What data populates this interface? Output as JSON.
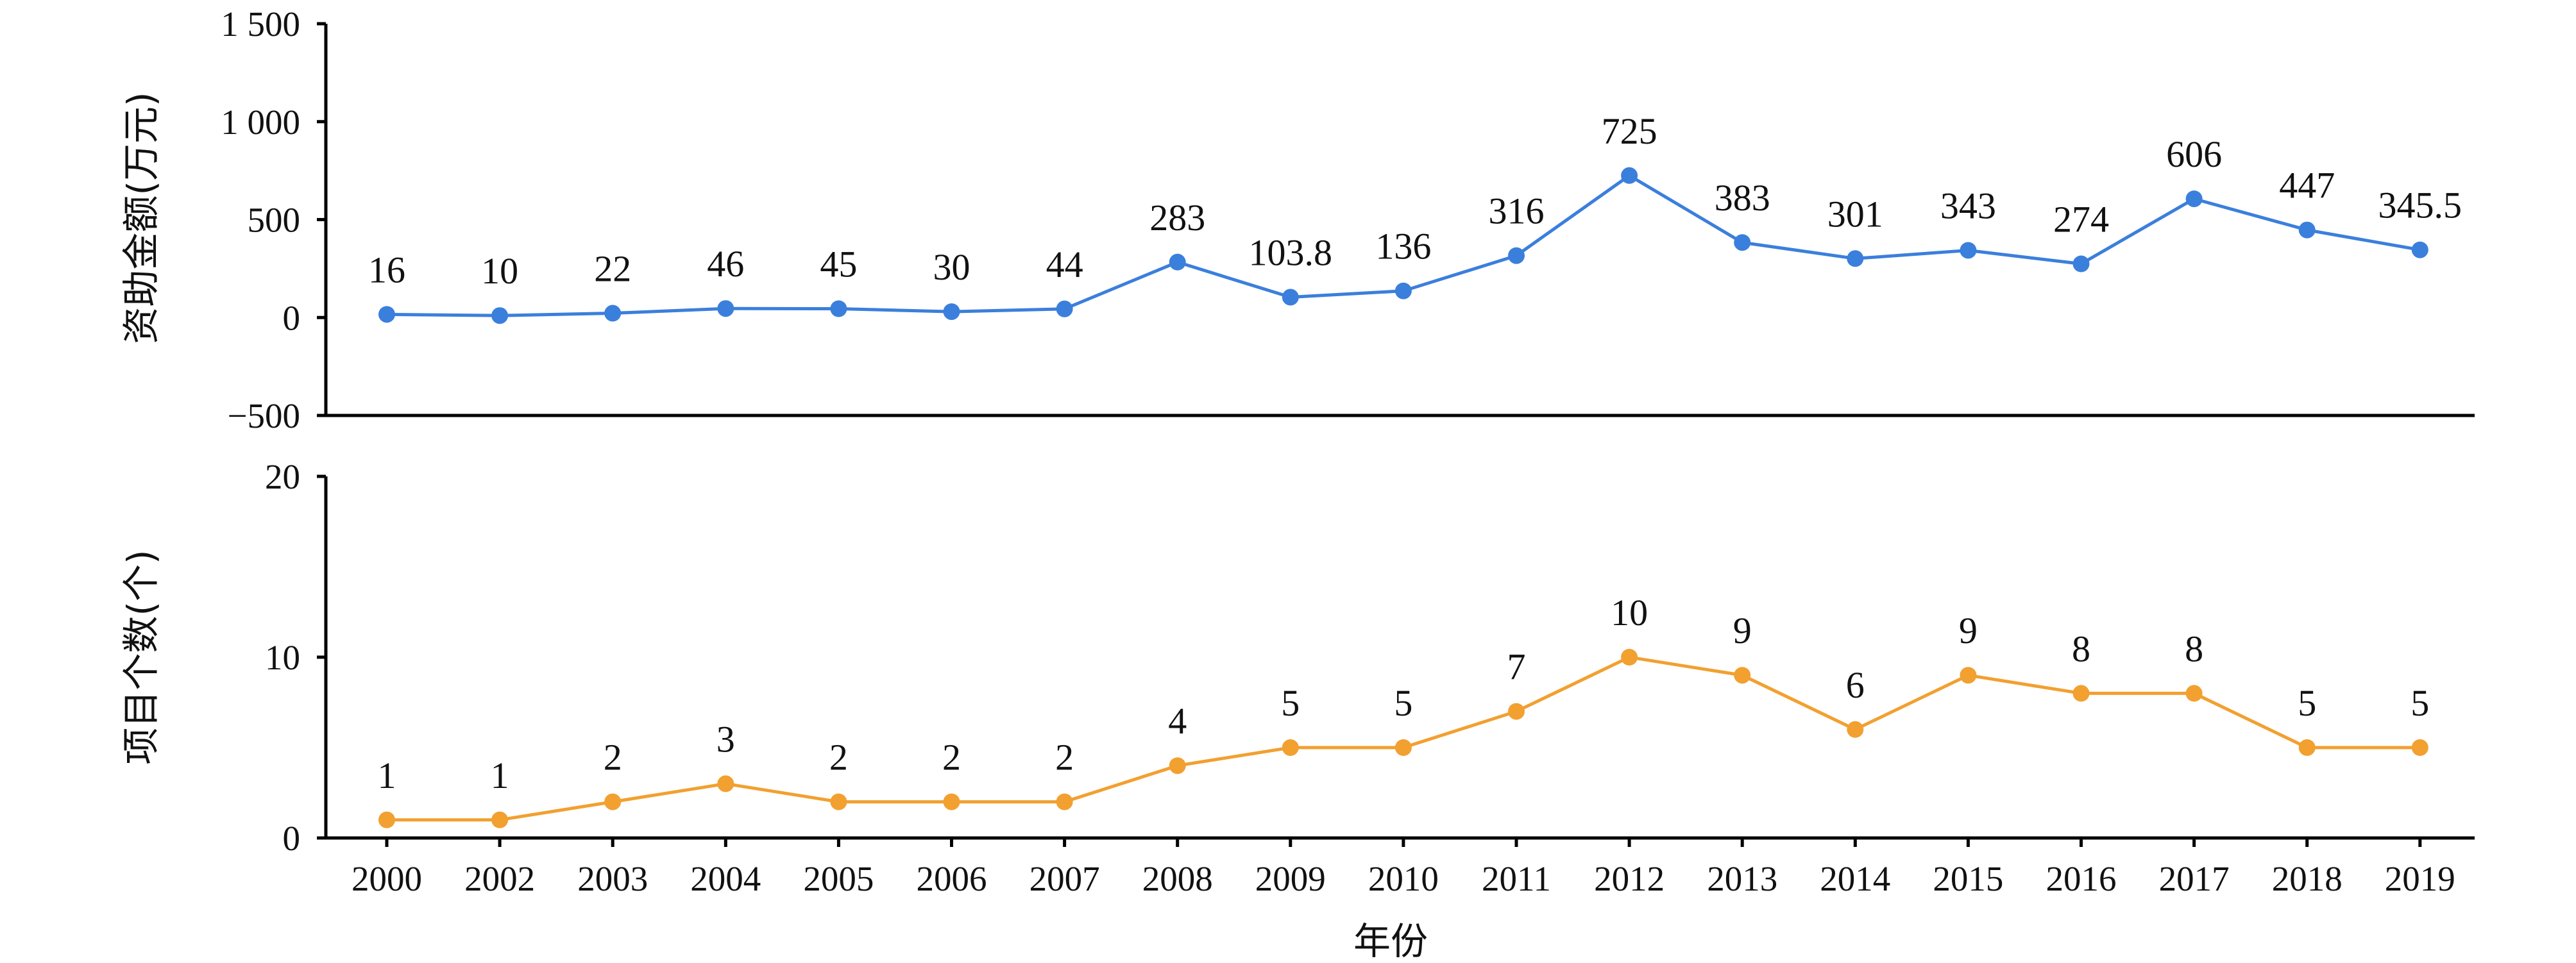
{
  "chart_data": {
    "type": "line",
    "categories": [
      "2000",
      "2002",
      "2003",
      "2004",
      "2005",
      "2006",
      "2007",
      "2008",
      "2009",
      "2010",
      "2011",
      "2012",
      "2013",
      "2014",
      "2015",
      "2016",
      "2017",
      "2018",
      "2019"
    ],
    "xlabel": "年份",
    "panels": [
      {
        "ylabel": "资助金额(万元)",
        "ylim": [
          -500,
          1500
        ],
        "yticks": [
          -500,
          0,
          500,
          1000,
          1500
        ],
        "ytick_labels": [
          "−500",
          "0",
          "500",
          "1 000",
          "1 500"
        ],
        "color": "#3b7fdc",
        "values": [
          16,
          10,
          22,
          46,
          45,
          30,
          44,
          283,
          103.8,
          136,
          316,
          725,
          383,
          301,
          343,
          274,
          606,
          447,
          345.5
        ],
        "data_labels": [
          "16",
          "10",
          "22",
          "46",
          "45",
          "30",
          "44",
          "283",
          "103.8",
          "136",
          "316",
          "725",
          "383",
          "301",
          "343",
          "274",
          "606",
          "447",
          "345.5"
        ]
      },
      {
        "ylabel": "项目个数(个)",
        "ylim": [
          0,
          20
        ],
        "yticks": [
          0,
          10,
          20
        ],
        "ytick_labels": [
          "0",
          "10",
          "20"
        ],
        "color": "#f2a030",
        "values": [
          1,
          1,
          2,
          3,
          2,
          2,
          2,
          4,
          5,
          5,
          7,
          10,
          9,
          6,
          9,
          8,
          8,
          5,
          5
        ],
        "data_labels": [
          "1",
          "1",
          "2",
          "3",
          "2",
          "2",
          "2",
          "4",
          "5",
          "5",
          "7",
          "10",
          "9",
          "6",
          "9",
          "8",
          "8",
          "5",
          "5"
        ]
      }
    ]
  }
}
